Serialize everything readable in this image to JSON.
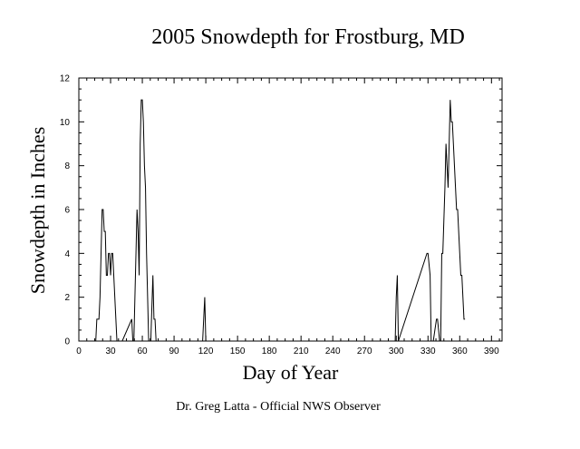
{
  "chart_data": {
    "type": "line",
    "title": "2005 Snowdepth for Frostburg, MD",
    "xlabel": "Day of Year",
    "ylabel": "Snowdepth in Inches",
    "xlim": [
      0,
      400
    ],
    "ylim": [
      0,
      12
    ],
    "xticks": [
      0,
      30,
      60,
      90,
      120,
      150,
      180,
      210,
      240,
      270,
      300,
      330,
      360,
      390
    ],
    "yticks": [
      0,
      2,
      4,
      6,
      8,
      10,
      12
    ],
    "grid": false,
    "series": [
      {
        "x": [
          1,
          16,
          17,
          19,
          20,
          21,
          22,
          23,
          24,
          25,
          26,
          27,
          28,
          29,
          30,
          31,
          32,
          33,
          34,
          35,
          36,
          37,
          38,
          39,
          40,
          41,
          50,
          51,
          52,
          55,
          56,
          57,
          58,
          59,
          60,
          61,
          62,
          63,
          64,
          65,
          66,
          67,
          68,
          70,
          71,
          72,
          73,
          74,
          75,
          117,
          118,
          119,
          120,
          121,
          299,
          300,
          301,
          302,
          329,
          330,
          332,
          333,
          334,
          335,
          338,
          339,
          341,
          342,
          343,
          344,
          346,
          347,
          348,
          349,
          350,
          351,
          352,
          353,
          354,
          355,
          356,
          357,
          358,
          359,
          360,
          361,
          362,
          363,
          364,
          365
        ],
        "y": [
          0,
          0,
          1,
          1,
          2,
          4,
          6,
          6,
          5,
          5,
          3,
          3,
          4,
          4,
          3,
          4,
          4,
          3,
          2,
          1,
          0,
          0,
          0,
          0,
          0,
          0,
          1,
          0,
          0,
          6,
          5,
          3,
          9,
          11,
          11,
          10,
          8,
          7,
          4,
          2,
          0,
          0,
          0,
          3,
          1,
          1,
          0,
          0,
          0,
          0,
          1,
          2,
          0,
          0,
          0,
          2,
          3,
          0,
          4,
          4,
          3,
          0,
          0,
          0,
          1,
          1,
          0,
          0,
          4,
          4,
          7,
          9,
          8,
          7,
          9,
          11,
          10,
          10,
          9,
          8,
          7,
          6,
          6,
          5,
          4,
          3,
          3,
          2,
          1,
          1
        ]
      }
    ]
  },
  "footer": "Dr. Greg Latta - Official NWS Observer"
}
